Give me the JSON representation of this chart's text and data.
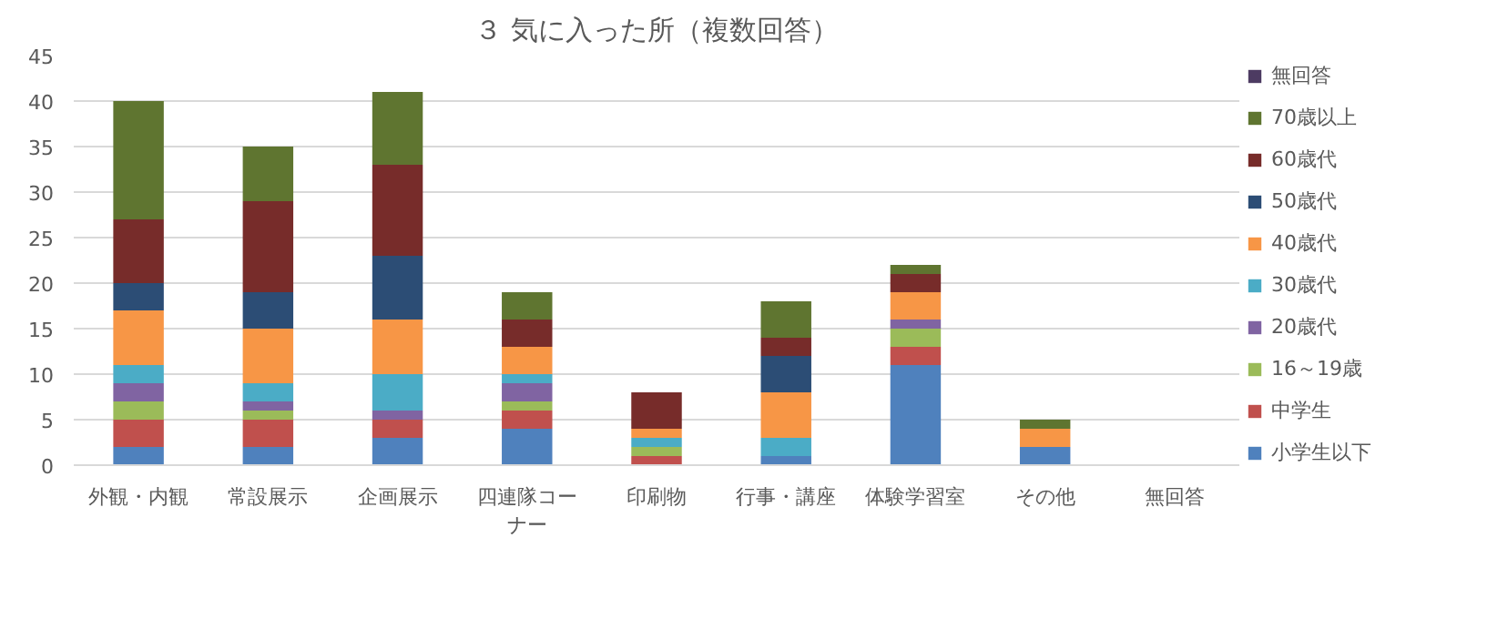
{
  "chart_data": {
    "type": "bar",
    "title": "３ 気に入った所（複数回答）",
    "stacked": true,
    "categories": [
      "外観・内観",
      "常設展示",
      "企画展示",
      "四連隊コーナー",
      "印刷物",
      "行事・講座",
      "体験学習室",
      "その他",
      "無回答"
    ],
    "series": [
      {
        "name": "小学生以下",
        "color": "#4f81bd",
        "values": [
          2,
          2,
          3,
          4,
          0,
          1,
          11,
          2,
          0
        ]
      },
      {
        "name": "中学生",
        "color": "#c0504d",
        "values": [
          3,
          3,
          2,
          2,
          1,
          0,
          2,
          0,
          0
        ]
      },
      {
        "name": "16～19歳",
        "color": "#9bbb59",
        "values": [
          2,
          1,
          0,
          1,
          1,
          0,
          2,
          0,
          0
        ]
      },
      {
        "name": "20歳代",
        "color": "#8064a2",
        "values": [
          2,
          1,
          1,
          2,
          0,
          0,
          1,
          0,
          0
        ]
      },
      {
        "name": "30歳代",
        "color": "#4bacc6",
        "values": [
          2,
          2,
          4,
          1,
          1,
          2,
          0,
          0,
          0
        ]
      },
      {
        "name": "40歳代",
        "color": "#f79646",
        "values": [
          6,
          6,
          6,
          3,
          1,
          5,
          3,
          2,
          0
        ]
      },
      {
        "name": "50歳代",
        "color": "#2c4d75",
        "values": [
          3,
          4,
          7,
          0,
          0,
          4,
          0,
          0,
          0
        ]
      },
      {
        "name": "60歳代",
        "color": "#772c2a",
        "values": [
          7,
          10,
          10,
          3,
          4,
          2,
          2,
          0,
          0
        ]
      },
      {
        "name": "70歳以上",
        "color": "#5f7530",
        "values": [
          13,
          6,
          8,
          3,
          0,
          4,
          1,
          1,
          0
        ]
      },
      {
        "name": "無回答",
        "color": "#4d3b62",
        "values": [
          0,
          0,
          0,
          0,
          0,
          0,
          0,
          0,
          0
        ]
      }
    ],
    "ylim": [
      0,
      45
    ],
    "yticks": [
      0,
      5,
      10,
      15,
      20,
      25,
      30,
      35,
      40,
      45
    ],
    "grid": "y",
    "legend": "right"
  }
}
